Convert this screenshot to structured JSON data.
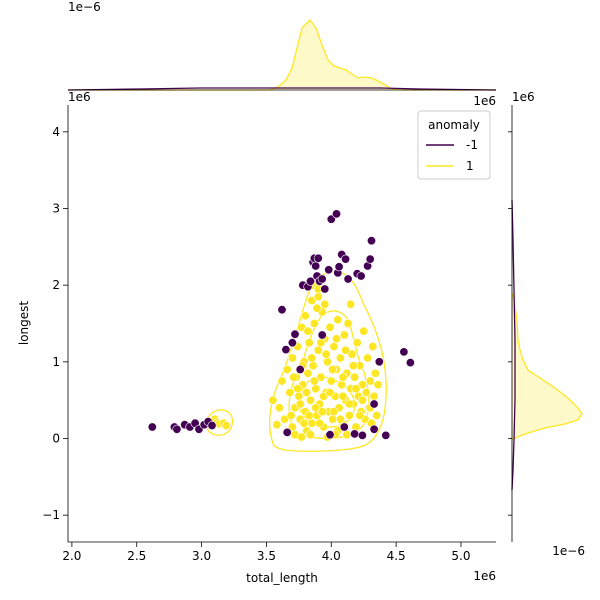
{
  "chart_data": {
    "type": "scatter",
    "title": "",
    "xlabel": "total_length",
    "ylabel": "longest",
    "x_offset_label": "1e6",
    "y_offset_label": "1e6",
    "top_marginal_offset_label": "1e−6",
    "right_marginal_offset_label": "1e6",
    "right_marginal_bottom_offset_label": "1e−6",
    "xlim": [
      1970000.0,
      5270000.0
    ],
    "ylim": [
      -1350000.0,
      4350000.0
    ],
    "x_ticks": [
      2.0,
      2.5,
      3.0,
      3.5,
      4.0,
      4.5,
      5.0
    ],
    "x_tick_labels": [
      "2.0",
      "2.5",
      "3.0",
      "3.5",
      "4.0",
      "4.5",
      "5.0"
    ],
    "y_ticks": [
      -1,
      0,
      1,
      2,
      3,
      4
    ],
    "y_tick_labels": [
      "−1",
      "0",
      "1",
      "2",
      "3",
      "4"
    ],
    "legend": {
      "title": "anomaly",
      "position": "top-right",
      "entries": [
        {
          "label": "-1",
          "color": "#440154"
        },
        {
          "label": "1",
          "color": "#fde725"
        }
      ]
    },
    "series": [
      {
        "name": "-1",
        "color": "#440154",
        "points": [
          [
            2620000.0,
            150000.0
          ],
          [
            2790000.0,
            150000.0
          ],
          [
            2810000.0,
            120000.0
          ],
          [
            2870000.0,
            180000.0
          ],
          [
            2910000.0,
            150000.0
          ],
          [
            2950000.0,
            200000.0
          ],
          [
            2980000.0,
            120000.0
          ],
          [
            3020000.0,
            180000.0
          ],
          [
            3050000.0,
            220000.0
          ],
          [
            3080000.0,
            170000.0
          ],
          [
            3620000.0,
            1680000.0
          ],
          [
            3650000.0,
            1160000.0
          ],
          [
            3700000.0,
            1250000.0
          ],
          [
            3720000.0,
            1360000.0
          ],
          [
            3780000.0,
            2000000.0
          ],
          [
            3820000.0,
            1980000.0
          ],
          [
            3840000.0,
            2050000.0
          ],
          [
            3860000.0,
            2300000.0
          ],
          [
            3870000.0,
            2350000.0
          ],
          [
            3880000.0,
            2250000.0
          ],
          [
            3890000.0,
            2120000.0
          ],
          [
            3900000.0,
            2350000.0
          ],
          [
            3910000.0,
            2050000.0
          ],
          [
            3930000.0,
            2080000.0
          ],
          [
            3950000.0,
            1950000.0
          ],
          [
            3980000.0,
            2200000.0
          ],
          [
            4000000.0,
            2860000.0
          ],
          [
            4040000.0,
            2930000.0
          ],
          [
            4050000.0,
            2160000.0
          ],
          [
            4060000.0,
            2240000.0
          ],
          [
            4080000.0,
            2400000.0
          ],
          [
            4110000.0,
            2340000.0
          ],
          [
            4130000.0,
            2080000.0
          ],
          [
            4200000.0,
            2150000.0
          ],
          [
            4230000.0,
            2120000.0
          ],
          [
            4280000.0,
            2250000.0
          ],
          [
            4300000.0,
            2340000.0
          ],
          [
            4310000.0,
            2580000.0
          ],
          [
            4330000.0,
            450000.0
          ],
          [
            4330000.0,
            120000.0
          ],
          [
            4370000.0,
            1000000.0
          ],
          [
            4420000.0,
            40000.0
          ],
          [
            4560000.0,
            1130000.0
          ],
          [
            4610000.0,
            990000.0
          ],
          [
            3660000.0,
            80000.0
          ],
          [
            4180000.0,
            60000.0
          ],
          [
            4100000.0,
            150000.0
          ],
          [
            3760000.0,
            900000.0
          ],
          [
            4240000.0,
            40000.0
          ],
          [
            3990000.0,
            50000.0
          ],
          [
            3930000.0,
            1350000.0
          ]
        ]
      },
      {
        "name": "1",
        "color": "#fde725",
        "points": [
          [
            3100000.0,
            250000.0
          ],
          [
            3120000.0,
            210000.0
          ],
          [
            3140000.0,
            190000.0
          ],
          [
            3170000.0,
            200000.0
          ],
          [
            3190000.0,
            170000.0
          ],
          [
            3550000.0,
            500000.0
          ],
          [
            3580000.0,
            180000.0
          ],
          [
            3600000.0,
            400000.0
          ],
          [
            3620000.0,
            750000.0
          ],
          [
            3640000.0,
            250000.0
          ],
          [
            3660000.0,
            900000.0
          ],
          [
            3680000.0,
            600000.0
          ],
          [
            3700000.0,
            1050000.0
          ],
          [
            3700000.0,
            150000.0
          ],
          [
            3720000.0,
            400000.0
          ],
          [
            3730000.0,
            800000.0
          ],
          [
            3740000.0,
            1200000.0
          ],
          [
            3750000.0,
            550000.0
          ],
          [
            3760000.0,
            250000.0
          ],
          [
            3770000.0,
            1450000.0
          ],
          [
            3780000.0,
            700000.0
          ],
          [
            3790000.0,
            1000000.0
          ],
          [
            3800000.0,
            350000.0
          ],
          [
            3800000.0,
            1600000.0
          ],
          [
            3810000.0,
            100000.0
          ],
          [
            3820000.0,
            850000.0
          ],
          [
            3830000.0,
            1250000.0
          ],
          [
            3840000.0,
            500000.0
          ],
          [
            3850000.0,
            1800000.0
          ],
          [
            3850000.0,
            200000.0
          ],
          [
            3860000.0,
            950000.0
          ],
          [
            3870000.0,
            1500000.0
          ],
          [
            3880000.0,
            650000.0
          ],
          [
            3890000.0,
            300000.0
          ],
          [
            3900000.0,
            1150000.0
          ],
          [
            3900000.0,
            1850000.0
          ],
          [
            3910000.0,
            450000.0
          ],
          [
            3920000.0,
            800000.0
          ],
          [
            3930000.0,
            1650000.0
          ],
          [
            3940000.0,
            150000.0
          ],
          [
            3950000.0,
            1300000.0
          ],
          [
            3960000.0,
            600000.0
          ],
          [
            3970000.0,
            1000000.0
          ],
          [
            3980000.0,
            350000.0
          ],
          [
            3990000.0,
            1450000.0
          ],
          [
            4000000.0,
            750000.0
          ],
          [
            4010000.0,
            250000.0
          ],
          [
            4020000.0,
            1200000.0
          ],
          [
            4030000.0,
            550000.0
          ],
          [
            4040000.0,
            900000.0
          ],
          [
            4050000.0,
            1550000.0
          ],
          [
            4060000.0,
            400000.0
          ],
          [
            4070000.0,
            1050000.0
          ],
          [
            4080000.0,
            700000.0
          ],
          [
            4090000.0,
            200000.0
          ],
          [
            4100000.0,
            1350000.0
          ],
          [
            4110000.0,
            500000.0
          ],
          [
            4120000.0,
            850000.0
          ],
          [
            4130000.0,
            1500000.0
          ],
          [
            4140000.0,
            300000.0
          ],
          [
            4150000.0,
            650000.0
          ],
          [
            4160000.0,
            1100000.0
          ],
          [
            4170000.0,
            450000.0
          ],
          [
            4180000.0,
            800000.0
          ],
          [
            4190000.0,
            150000.0
          ],
          [
            4200000.0,
            1250000.0
          ],
          [
            4210000.0,
            550000.0
          ],
          [
            4220000.0,
            950000.0
          ],
          [
            4230000.0,
            350000.0
          ],
          [
            4240000.0,
            700000.0
          ],
          [
            4250000.0,
            1400000.0
          ],
          [
            4260000.0,
            250000.0
          ],
          [
            4270000.0,
            600000.0
          ],
          [
            4280000.0,
            1050000.0
          ],
          [
            4290000.0,
            400000.0
          ],
          [
            4300000.0,
            750000.0
          ],
          [
            4310000.0,
            200000.0
          ],
          [
            4320000.0,
            1200000.0
          ],
          [
            4330000.0,
            550000.0
          ],
          [
            4340000.0,
            850000.0
          ],
          [
            4350000.0,
            300000.0
          ],
          [
            4360000.0,
            700000.0
          ],
          [
            3860000.0,
            2000000.0
          ],
          [
            3900000.0,
            1950000.0
          ],
          [
            3950000.0,
            1750000.0
          ],
          [
            4150000.0,
            1750000.0
          ],
          [
            3720000.0,
            50000.0
          ],
          [
            3770000.0,
            20000.0
          ],
          [
            3840000.0,
            50000.0
          ],
          [
            3970000.0,
            20000.0
          ],
          [
            4050000.0,
            100000.0
          ],
          [
            4120000.0,
            50000.0
          ],
          [
            3810000.0,
            600000.0
          ],
          [
            3880000.0,
            400000.0
          ],
          [
            3940000.0,
            550000.0
          ],
          [
            4020000.0,
            350000.0
          ],
          [
            3760000.0,
            450000.0
          ],
          [
            3830000.0,
            300000.0
          ],
          [
            3910000.0,
            200000.0
          ],
          [
            3990000.0,
            600000.0
          ],
          [
            4070000.0,
            250000.0
          ],
          [
            4140000.0,
            450000.0
          ],
          [
            4220000.0,
            300000.0
          ],
          [
            3690000.0,
            300000.0
          ],
          [
            3740000.0,
            650000.0
          ],
          [
            3790000.0,
            200000.0
          ],
          [
            3870000.0,
            750000.0
          ],
          [
            3930000.0,
            350000.0
          ],
          [
            4010000.0,
            900000.0
          ],
          [
            4090000.0,
            550000.0
          ],
          [
            4170000.0,
            950000.0
          ],
          [
            4240000.0,
            500000.0
          ],
          [
            4300000.0,
            400000.0
          ],
          [
            3960000.0,
            1100000.0
          ],
          [
            4040000.0,
            1300000.0
          ],
          [
            3820000.0,
            1400000.0
          ],
          [
            3890000.0,
            1700000.0
          ],
          [
            4110000.0,
            1150000.0
          ],
          [
            4190000.0,
            650000.0
          ],
          [
            3850000.0,
            1050000.0
          ],
          [
            3920000.0,
            1250000.0
          ],
          [
            4030000.0,
            50000.0
          ],
          [
            4090000.0,
            800000.0
          ],
          [
            3780000.0,
            950000.0
          ],
          [
            3710000.0,
            800000.0
          ]
        ]
      }
    ]
  }
}
